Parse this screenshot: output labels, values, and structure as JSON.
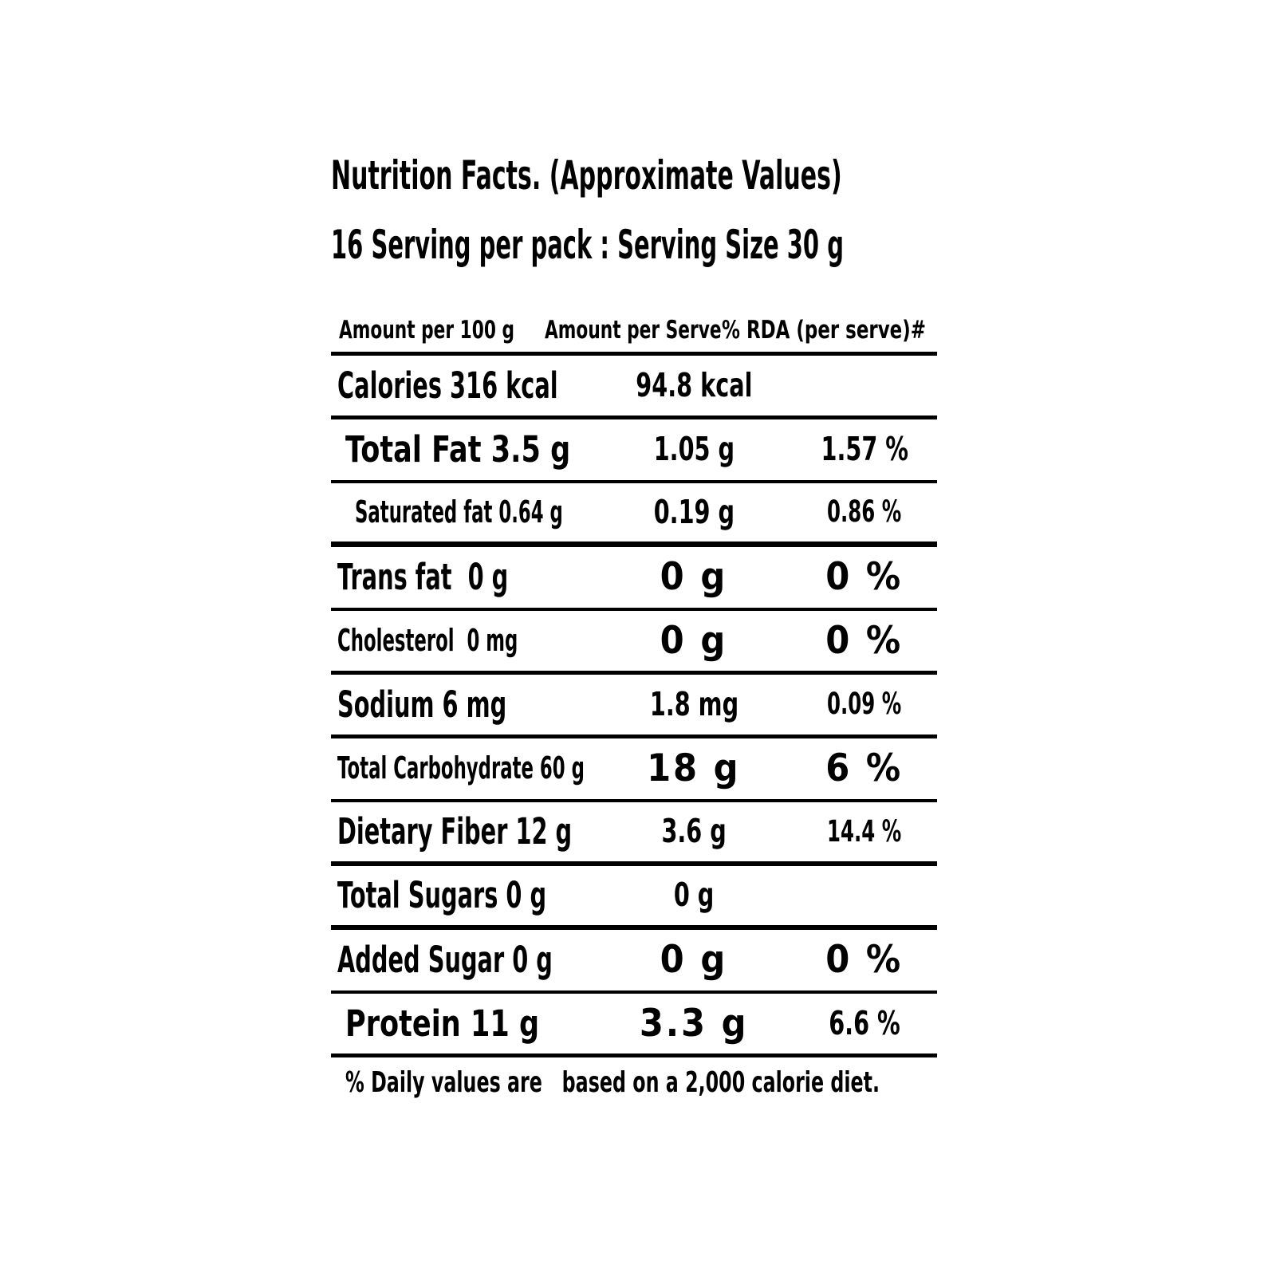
{
  "label": {
    "title": "Nutrition Facts. (Approximate Values)",
    "serving_info": "16 Serving per pack : Serving Size 30 g",
    "columns": {
      "per_100g": "Amount per 100 g",
      "per_serve": "Amount per Serve",
      "rda": "% RDA (per serve)#"
    },
    "rows": [
      {
        "name": "Calories 316 kcal",
        "per_serve": "94.8 kcal",
        "rda": ""
      },
      {
        "name": "Total Fat 3.5 g",
        "per_serve": "1.05 g",
        "rda": "1.57 %"
      },
      {
        "name": "Saturated fat 0.64 g",
        "per_serve": "0.19 g",
        "rda": "0.86 %"
      },
      {
        "name": "Trans fat  0 g",
        "per_serve": "0 g",
        "rda": "0 %"
      },
      {
        "name": "Cholesterol  0 mg",
        "per_serve": "0 g",
        "rda": "0 %"
      },
      {
        "name": "Sodium 6 mg",
        "per_serve": "1.8 mg",
        "rda": "0.09 %"
      },
      {
        "name": "Total Carbohydrate 60 g",
        "per_serve": "18 g",
        "rda": "6 %"
      },
      {
        "name": "Dietary Fiber 12 g",
        "per_serve": "3.6 g",
        "rda": "14.4 %"
      },
      {
        "name": "Total Sugars 0 g",
        "per_serve": "0 g",
        "rda": ""
      },
      {
        "name": "Added Sugar 0 g",
        "per_serve": "0 g",
        "rda": "0 %"
      },
      {
        "name": "Protein 11 g",
        "per_serve": "3.3 g",
        "rda": "6.6 %"
      }
    ],
    "footnote": "% Daily values are   based on a 2,000 calorie diet.",
    "colors": {
      "text": "#000000",
      "background": "#ffffff"
    }
  }
}
